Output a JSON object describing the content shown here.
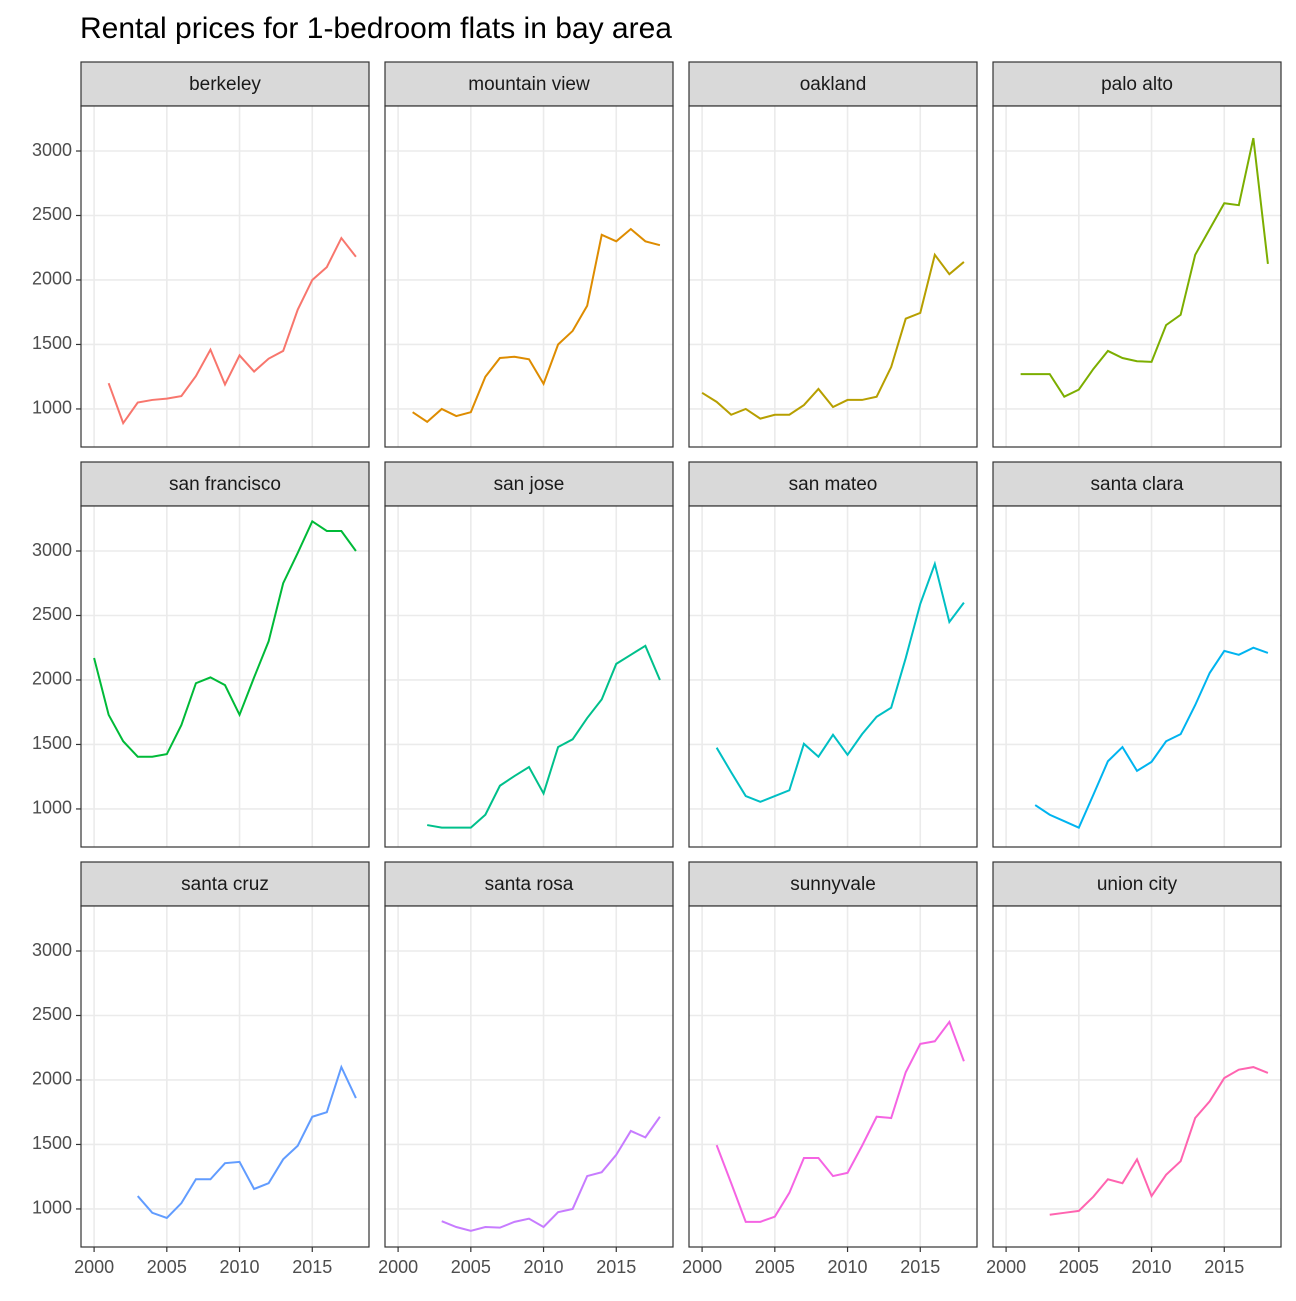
{
  "chart_data": {
    "type": "line",
    "title": "Rental prices for 1-bedroom flats in bay area",
    "x": [
      2000,
      2001,
      2002,
      2003,
      2004,
      2005,
      2006,
      2007,
      2008,
      2009,
      2010,
      2011,
      2012,
      2013,
      2014,
      2015,
      2016,
      2017,
      2018
    ],
    "xlim": [
      1999.1,
      2018.9
    ],
    "xticks": [
      2000,
      2005,
      2010,
      2015
    ],
    "ylim": [
      705,
      3349
    ],
    "yticks": [
      1000,
      1500,
      2000,
      2500,
      3000
    ],
    "grid": true,
    "series": [
      {
        "name": "berkeley",
        "color": "#F8766D",
        "values": [
          null,
          1200,
          890,
          1050,
          1070,
          1080,
          1100,
          1255,
          1460,
          1190,
          1415,
          1290,
          1390,
          1450,
          1770,
          2000,
          2100,
          2325,
          2180
        ]
      },
      {
        "name": "mountain view",
        "color": "#DE8C00",
        "values": [
          null,
          975,
          900,
          1000,
          945,
          975,
          1250,
          1395,
          1405,
          1385,
          1195,
          1500,
          1605,
          1800,
          2350,
          2300,
          2395,
          2300,
          2270
        ]
      },
      {
        "name": "oakland",
        "color": "#B79F00",
        "values": [
          1125,
          1055,
          955,
          1000,
          925,
          955,
          955,
          1030,
          1155,
          1015,
          1070,
          1070,
          1095,
          1325,
          1700,
          1745,
          2195,
          2045,
          2140
        ]
      },
      {
        "name": "palo alto",
        "color": "#7CAE00",
        "values": [
          null,
          1270,
          1270,
          1270,
          1095,
          1150,
          1310,
          1450,
          1395,
          1370,
          1365,
          1650,
          1730,
          2195,
          2395,
          2595,
          2580,
          3100,
          2125
        ]
      },
      {
        "name": "san francisco",
        "color": "#00BA38",
        "values": [
          2170,
          1730,
          1525,
          1405,
          1405,
          1425,
          1650,
          1975,
          2020,
          1960,
          1730,
          2020,
          2300,
          2750,
          2985,
          3230,
          3155,
          3155,
          3000
        ]
      },
      {
        "name": "san jose",
        "color": "#00C08B",
        "values": [
          null,
          null,
          875,
          855,
          855,
          855,
          955,
          1180,
          1255,
          1325,
          1120,
          1480,
          1540,
          1705,
          1850,
          2125,
          2195,
          2265,
          2000
        ]
      },
      {
        "name": "san mateo",
        "color": "#00BFC4",
        "values": [
          null,
          1475,
          1285,
          1100,
          1055,
          1100,
          1145,
          1505,
          1405,
          1575,
          1420,
          1580,
          1715,
          1785,
          2170,
          2590,
          2900,
          2450,
          2600
        ]
      },
      {
        "name": "santa clara",
        "color": "#00B4F0",
        "values": [
          null,
          null,
          1030,
          955,
          905,
          855,
          1110,
          1370,
          1480,
          1295,
          1365,
          1525,
          1580,
          1805,
          2055,
          2225,
          2195,
          2250,
          2210
        ]
      },
      {
        "name": "santa cruz",
        "color": "#619CFF",
        "values": [
          null,
          null,
          null,
          1100,
          970,
          930,
          1045,
          1230,
          1230,
          1355,
          1365,
          1155,
          1200,
          1385,
          1490,
          1715,
          1750,
          2100,
          1860
        ]
      },
      {
        "name": "santa rosa",
        "color": "#C77CFF",
        "values": [
          null,
          null,
          null,
          905,
          860,
          830,
          860,
          855,
          900,
          925,
          860,
          975,
          1000,
          1255,
          1285,
          1420,
          1605,
          1555,
          1715
        ]
      },
      {
        "name": "sunnyvale",
        "color": "#F564E3",
        "values": [
          null,
          1495,
          1200,
          900,
          900,
          940,
          1125,
          1395,
          1395,
          1255,
          1280,
          1490,
          1715,
          1705,
          2060,
          2280,
          2300,
          2450,
          2145
        ]
      },
      {
        "name": "union city",
        "color": "#FF64B0",
        "values": [
          null,
          null,
          null,
          955,
          970,
          985,
          1095,
          1230,
          1200,
          1385,
          1100,
          1265,
          1370,
          1705,
          1835,
          2015,
          2080,
          2100,
          2055
        ]
      }
    ]
  }
}
